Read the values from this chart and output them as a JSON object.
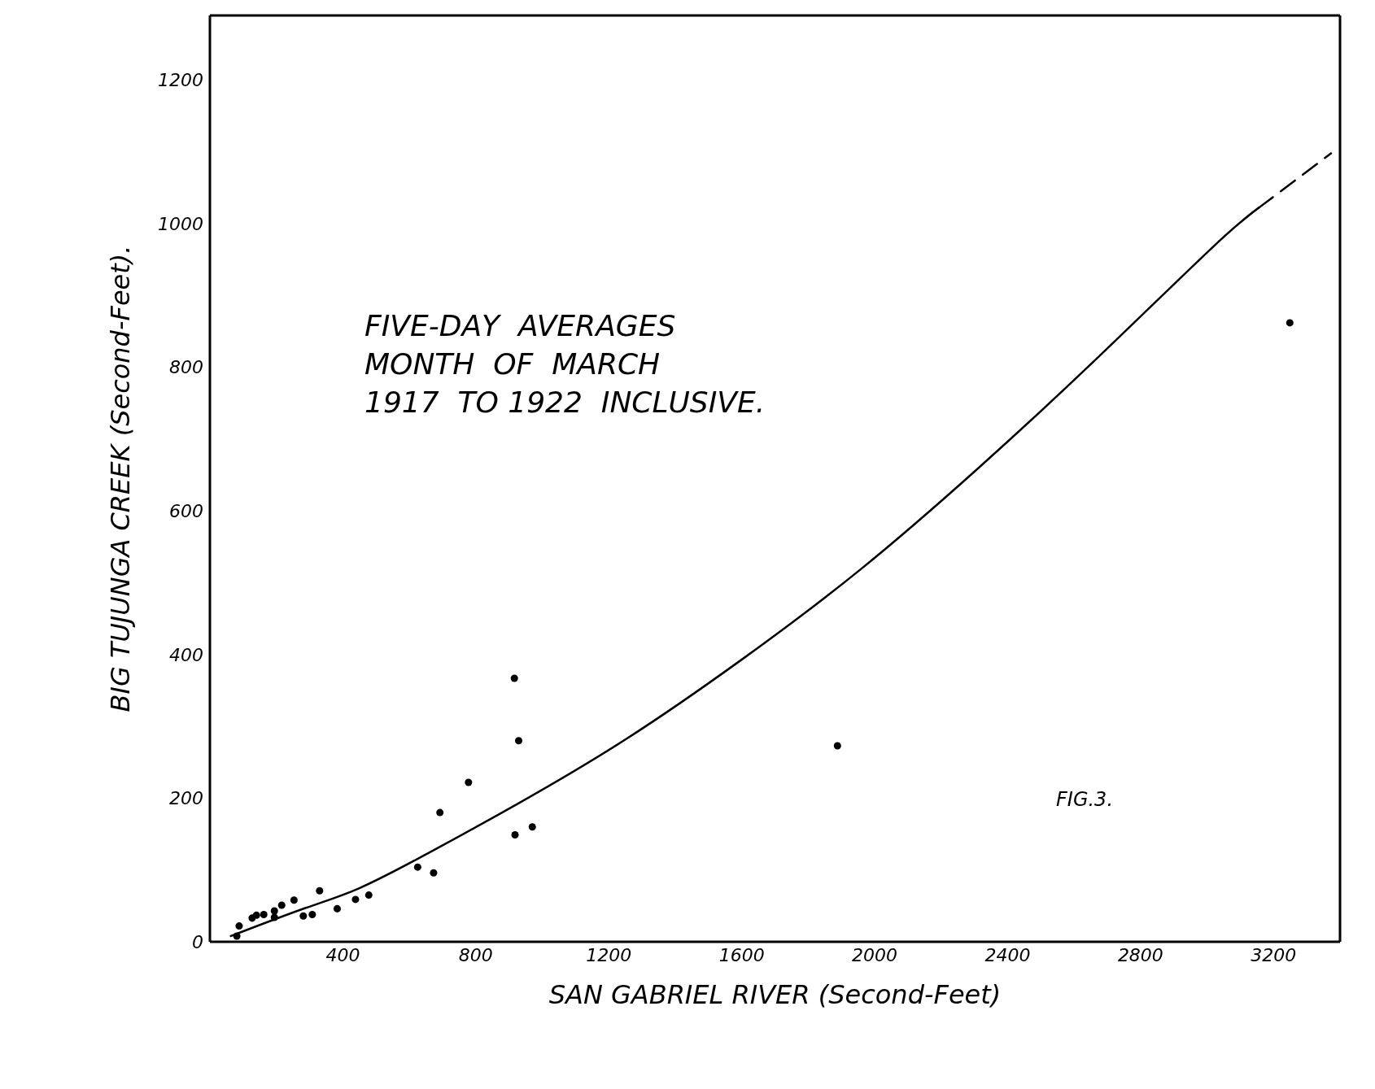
{
  "chart_data": {
    "type": "scatter",
    "xlabel": "SAN GABRIEL RIVER  (Second-Feet)",
    "ylabel": "BIG TUJUNGA CREEK  (Second-Feet).",
    "annotations": [
      "FIVE-DAY  AVERAGES\nMONTH  OF  MARCH\n1917  TO 1922  INCLUSIVE.",
      "FIG.3."
    ],
    "xlim": [
      0,
      3400
    ],
    "xticks": [
      400,
      800,
      1200,
      1600,
      2000,
      2400,
      2800,
      3200
    ],
    "ylim": [
      0,
      1290
    ],
    "yticks": [
      0,
      200,
      400,
      600,
      800,
      1000,
      1200
    ],
    "series": [
      {
        "color": "#000000",
        "marker": "circle",
        "x": [
          81,
          88,
          127,
          140,
          162,
          194,
          194,
          216,
          253,
          281,
          308,
          330,
          383,
          438,
          478,
          625,
          673,
          692,
          778,
          916,
          929,
          918,
          970,
          1888,
          3249
        ],
        "values": [
          8,
          22,
          33,
          37,
          38,
          43,
          34,
          51,
          58,
          36,
          38,
          71,
          46,
          59,
          65,
          104,
          96,
          180,
          222,
          367,
          280,
          149,
          160,
          273,
          862
        ]
      },
      {
        "type": "line",
        "color": "#000000",
        "marker": "none",
        "line_style": "solid",
        "x": [
          63,
          287,
          451,
          663,
          929,
          1251,
          1603,
          1956,
          2308,
          2661,
          3014,
          3155
        ],
        "values": [
          8,
          47,
          75,
          125,
          193,
          282,
          394,
          518,
          658,
          809,
          966,
          1022
        ]
      },
      {
        "type": "line",
        "color": "#000000",
        "marker": "none",
        "line_style": "dashed",
        "x": [
          3155,
          3373
        ],
        "values": [
          1022,
          1098
        ]
      }
    ]
  }
}
